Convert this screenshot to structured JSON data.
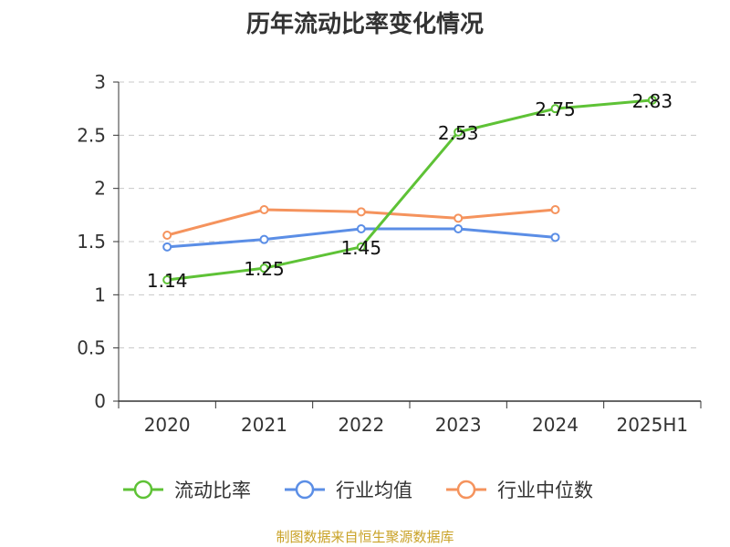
{
  "chart_data": {
    "type": "line",
    "title": "历年流动比率变化情况",
    "categories": [
      "2020",
      "2021",
      "2022",
      "2023",
      "2024",
      "2025H1"
    ],
    "ylim": [
      0,
      3
    ],
    "yticks": [
      0,
      0.5,
      1,
      1.5,
      2,
      2.5,
      3
    ],
    "ytick_labels": [
      "0",
      "0.5",
      "1",
      "1.5",
      "2",
      "2.5",
      "3"
    ],
    "grid": true,
    "legend_position": "bottom",
    "series": [
      {
        "name": "流动比率",
        "color": "#5ec236",
        "values": [
          1.14,
          1.25,
          1.45,
          2.53,
          2.75,
          2.83
        ],
        "data_labels": [
          "1.14",
          "1.25",
          "1.45",
          "2.53",
          "2.75",
          "2.83"
        ]
      },
      {
        "name": "行业均值",
        "color": "#5b8ee6",
        "values": [
          1.45,
          1.52,
          1.62,
          1.62,
          1.54,
          null
        ]
      },
      {
        "name": "行业中位数",
        "color": "#f5935d",
        "values": [
          1.56,
          1.8,
          1.78,
          1.72,
          1.8,
          null
        ]
      }
    ]
  },
  "source": "制图数据来自恒生聚源数据库"
}
